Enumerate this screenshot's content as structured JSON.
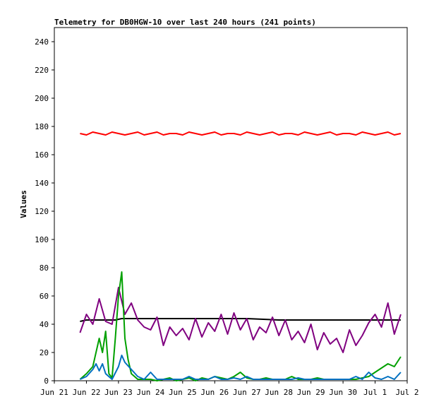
{
  "chart_data": {
    "type": "line",
    "title": "Telemetry for DB0HGW-10 over last 240 hours (241 points)",
    "xlabel": "",
    "ylabel": "Values",
    "xlim": [
      "Jun 21",
      "Jul 2"
    ],
    "ylim": [
      0,
      250
    ],
    "grid": false,
    "legend": "none",
    "x_ticks": [
      "Jun 21",
      "Jun 22",
      "Jun 23",
      "Jun 24",
      "Jun 25",
      "Jun 26",
      "Jun 27",
      "Jun 28",
      "Jun 29",
      "Jun 30",
      "Jul 1",
      "Jul 2"
    ],
    "y_ticks": [
      0,
      20,
      40,
      60,
      80,
      100,
      120,
      140,
      160,
      180,
      200,
      220,
      240
    ],
    "x_unit": "days since Jun 21 00:00",
    "series": [
      {
        "color": "#ff0000",
        "x": [
          0.8,
          1.0,
          1.2,
          1.4,
          1.6,
          1.8,
          2.0,
          2.2,
          2.4,
          2.6,
          2.8,
          3.0,
          3.2,
          3.4,
          3.6,
          3.8,
          4.0,
          4.2,
          4.4,
          4.6,
          4.8,
          5.0,
          5.2,
          5.4,
          5.6,
          5.8,
          6.0,
          6.2,
          6.4,
          6.6,
          6.8,
          7.0,
          7.2,
          7.4,
          7.6,
          7.8,
          8.0,
          8.2,
          8.4,
          8.6,
          8.8,
          9.0,
          9.2,
          9.4,
          9.6,
          9.8,
          10.0,
          10.2,
          10.4,
          10.6,
          10.8
        ],
        "y": [
          175,
          174,
          176,
          175,
          174,
          176,
          175,
          174,
          175,
          176,
          174,
          175,
          176,
          174,
          175,
          175,
          174,
          176,
          175,
          174,
          175,
          176,
          174,
          175,
          175,
          174,
          176,
          175,
          174,
          175,
          176,
          174,
          175,
          175,
          174,
          176,
          175,
          174,
          175,
          176,
          174,
          175,
          175,
          174,
          176,
          175,
          174,
          175,
          176,
          174,
          175
        ]
      },
      {
        "color": "#000000",
        "x": [
          0.8,
          1.0,
          1.5,
          1.9,
          2.1,
          3.0,
          4.0,
          5.0,
          6.0,
          7.0,
          8.0,
          9.0,
          10.0,
          10.8
        ],
        "y": [
          42,
          43,
          43,
          43,
          44,
          44,
          44,
          44,
          44,
          43,
          43,
          43,
          43,
          43
        ]
      },
      {
        "color": "#800080",
        "x": [
          0.8,
          1.0,
          1.2,
          1.4,
          1.6,
          1.8,
          2.0,
          2.2,
          2.4,
          2.6,
          2.8,
          3.0,
          3.2,
          3.4,
          3.6,
          3.8,
          4.0,
          4.2,
          4.4,
          4.6,
          4.8,
          5.0,
          5.2,
          5.4,
          5.6,
          5.8,
          6.0,
          6.2,
          6.4,
          6.6,
          6.8,
          7.0,
          7.2,
          7.4,
          7.6,
          7.8,
          8.0,
          8.2,
          8.4,
          8.6,
          8.8,
          9.0,
          9.2,
          9.4,
          9.6,
          9.8,
          10.0,
          10.2,
          10.4,
          10.6,
          10.8
        ],
        "y": [
          34,
          47,
          40,
          58,
          42,
          40,
          66,
          47,
          55,
          43,
          38,
          36,
          45,
          25,
          38,
          32,
          37,
          29,
          44,
          31,
          41,
          35,
          47,
          33,
          48,
          36,
          44,
          29,
          38,
          34,
          45,
          32,
          43,
          29,
          35,
          27,
          40,
          22,
          34,
          26,
          30,
          20,
          36,
          25,
          32,
          41,
          47,
          38,
          55,
          33,
          47
        ]
      },
      {
        "color": "#00a000",
        "x": [
          0.8,
          1.0,
          1.2,
          1.4,
          1.5,
          1.6,
          1.7,
          1.8,
          1.9,
          2.0,
          2.1,
          2.2,
          2.3,
          2.4,
          2.6,
          2.8,
          3.0,
          3.2,
          3.4,
          3.6,
          3.8,
          4.0,
          4.2,
          4.4,
          4.6,
          4.8,
          5.0,
          5.2,
          5.4,
          5.6,
          5.8,
          6.0,
          6.2,
          6.4,
          6.6,
          6.8,
          7.0,
          7.2,
          7.4,
          7.6,
          7.8,
          8.0,
          8.2,
          8.4,
          8.6,
          8.8,
          9.0,
          9.2,
          9.4,
          9.6,
          9.8,
          10.0,
          10.2,
          10.4,
          10.6,
          10.8
        ],
        "y": [
          1,
          5,
          10,
          30,
          20,
          35,
          5,
          2,
          30,
          60,
          77,
          30,
          15,
          5,
          1,
          1,
          1,
          0,
          1,
          2,
          0,
          1,
          2,
          0,
          2,
          1,
          3,
          2,
          1,
          3,
          6,
          2,
          1,
          1,
          2,
          1,
          1,
          1,
          3,
          1,
          1,
          1,
          2,
          1,
          1,
          1,
          1,
          1,
          1,
          2,
          3,
          6,
          9,
          12,
          10,
          17
        ]
      },
      {
        "color": "#0070c0",
        "x": [
          0.8,
          1.0,
          1.2,
          1.3,
          1.4,
          1.5,
          1.6,
          1.8,
          2.0,
          2.1,
          2.2,
          2.4,
          2.6,
          2.8,
          3.0,
          3.2,
          3.4,
          3.6,
          3.8,
          4.0,
          4.2,
          4.4,
          4.6,
          4.8,
          5.0,
          5.2,
          5.4,
          5.6,
          5.8,
          6.0,
          6.2,
          6.4,
          6.6,
          6.8,
          7.0,
          7.2,
          7.4,
          7.6,
          7.8,
          8.0,
          8.2,
          8.4,
          8.6,
          8.8,
          9.0,
          9.2,
          9.4,
          9.6,
          9.8,
          10.0,
          10.2,
          10.4,
          10.6,
          10.8
        ],
        "y": [
          1,
          3,
          8,
          12,
          7,
          12,
          5,
          1,
          10,
          18,
          13,
          8,
          3,
          1,
          6,
          1,
          1,
          1,
          1,
          1,
          3,
          1,
          1,
          1,
          3,
          1,
          1,
          2,
          1,
          3,
          1,
          1,
          1,
          1,
          1,
          1,
          1,
          2,
          1,
          1,
          1,
          1,
          1,
          1,
          1,
          1,
          3,
          1,
          6,
          2,
          1,
          3,
          1,
          6
        ]
      }
    ]
  }
}
